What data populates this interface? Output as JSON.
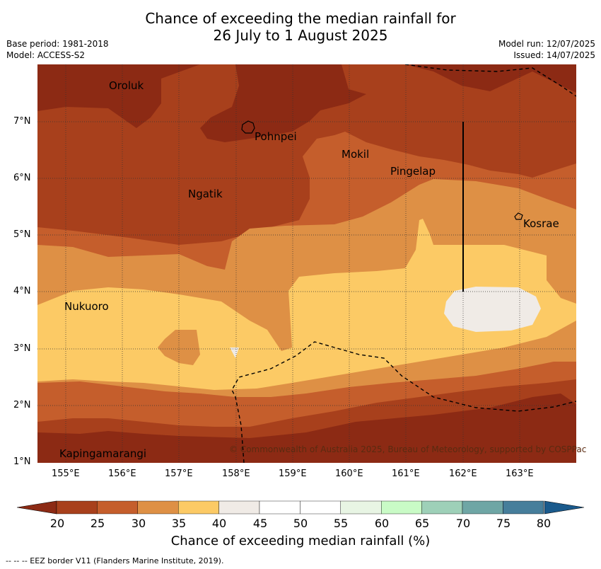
{
  "header": {
    "title_line1": "Chance of exceeding the median rainfall for",
    "title_line2": "26 July to 1 August 2025",
    "base_period": "Base period: 1981-2018",
    "model": "Model: ACCESS-S2",
    "model_run": "Model run: 12/07/2025",
    "issued": "Issued: 14/07/2025"
  },
  "map": {
    "x_ticks": [
      "155°E",
      "156°E",
      "157°E",
      "158°E",
      "159°E",
      "160°E",
      "161°E",
      "162°E",
      "163°E"
    ],
    "y_ticks": [
      "7°N",
      "6°N",
      "5°N",
      "4°N",
      "3°N",
      "2°N",
      "1°N"
    ],
    "places": [
      "Oroluk",
      "Pohnpei",
      "Mokil",
      "Pingelap",
      "Ngatik",
      "Kosrae",
      "Nukuoro",
      "Kapingamarangi"
    ],
    "copyright": "© Commonwealth of Australia 2025, Bureau of Meteorology, supported by COSPPac"
  },
  "colorbar": {
    "ticks": [
      "20",
      "25",
      "30",
      "35",
      "40",
      "45",
      "50",
      "55",
      "60",
      "65",
      "70",
      "75",
      "80"
    ],
    "colors": [
      "#a8401c",
      "#c55e2c",
      "#de9045",
      "#fcca65",
      "#f0ebe6",
      "#ffffff",
      "#ffffff",
      "#e8f5e4",
      "#c9fbc6",
      "#9ed0b8",
      "#6fa6a5",
      "#467e9b",
      "#1a5a8c"
    ],
    "under_color": "#8c2a14",
    "over_color": "#1a5a8c",
    "label": "Chance of exceeding median rainfall (%)"
  },
  "footer": {
    "note": "--  --  -- EEZ border V11 (Flanders Marine Institute, 2019)."
  }
}
